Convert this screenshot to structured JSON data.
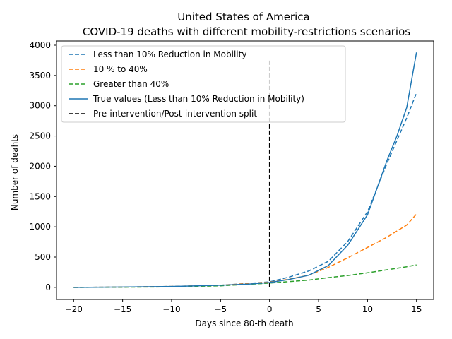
{
  "chart_data": {
    "type": "line",
    "title": "United States of America",
    "subtitle": "COVID-19 deaths with different mobility-restrictions scenarios",
    "xlabel": "Days since 80-th death",
    "ylabel": "Number of deahts",
    "xlim": [
      -21.75,
      16.75
    ],
    "ylim": [
      -200,
      4070
    ],
    "xticks": [
      -20,
      -15,
      -10,
      -5,
      0,
      5,
      10,
      15
    ],
    "xtick_labels": [
      "−20",
      "−15",
      "−10",
      "−5",
      "0",
      "5",
      "10",
      "15"
    ],
    "yticks": [
      0,
      500,
      1000,
      1500,
      2000,
      2500,
      3000,
      3500,
      4000
    ],
    "ytick_labels": [
      "0",
      "500",
      "1000",
      "1500",
      "2000",
      "2500",
      "3000",
      "3500",
      "4000"
    ],
    "legend_position": "top-left",
    "colors": {
      "blue": "#1f77b4",
      "orange": "#ff7f0e",
      "green": "#2ca02c",
      "black": "#000000"
    },
    "series": [
      {
        "name": "Less than 10% Reduction in  Mobility",
        "color": "#1f77b4",
        "style": "dashed",
        "x": [
          -20,
          -15,
          -10,
          -5,
          0,
          2,
          4,
          6,
          8,
          10,
          12,
          14,
          15
        ],
        "y": [
          0,
          5,
          15,
          35,
          90,
          170,
          270,
          430,
          760,
          1250,
          2050,
          2800,
          3210
        ]
      },
      {
        "name": "10 % to 40%",
        "color": "#ff7f0e",
        "style": "dashed",
        "x": [
          -20,
          -15,
          -10,
          -5,
          0,
          2,
          4,
          6,
          8,
          10,
          12,
          14,
          15
        ],
        "y": [
          0,
          5,
          15,
          35,
          85,
          135,
          200,
          330,
          490,
          660,
          830,
          1030,
          1210
        ]
      },
      {
        "name": "Greater than 40%",
        "color": "#2ca02c",
        "style": "dashed",
        "x": [
          -20,
          -15,
          -10,
          -5,
          0,
          2,
          4,
          6,
          8,
          10,
          12,
          14,
          15
        ],
        "y": [
          0,
          3,
          8,
          25,
          70,
          95,
          120,
          160,
          195,
          240,
          290,
          340,
          370
        ]
      },
      {
        "name": "True values (Less than 10% Reduction in  Mobility)",
        "color": "#1f77b4",
        "style": "solid",
        "x": [
          -20,
          -15,
          -10,
          -5,
          -2,
          0,
          2,
          4,
          6,
          8,
          10,
          12,
          13,
          14,
          15
        ],
        "y": [
          0,
          5,
          15,
          35,
          55,
          80,
          130,
          200,
          360,
          700,
          1200,
          2100,
          2500,
          2970,
          3880
        ]
      }
    ],
    "vline": {
      "name": "Pre-intervention/Post-intervention split",
      "x": 0,
      "y_range": [
        0,
        3750
      ],
      "color": "#000000",
      "style": "dashed"
    }
  }
}
